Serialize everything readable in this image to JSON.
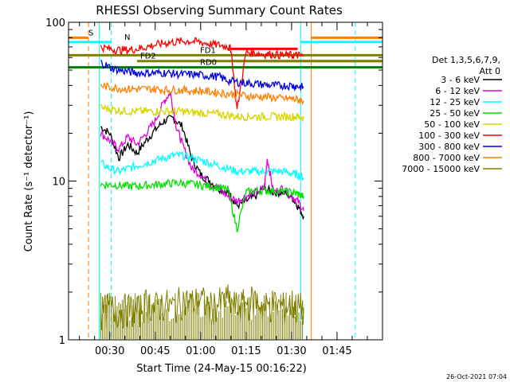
{
  "chart_data": {
    "type": "line",
    "title": "RHESSI Observing Summary Count Rates",
    "xlabel": "Start Time (24-May-15 00:16:22)",
    "ylabel": "Count Rate (s⁻¹ detector⁻¹)",
    "yscale": "log",
    "ylim": [
      1,
      100
    ],
    "xlim_minutes": [
      16.4,
      120
    ],
    "y_ticks": [
      {
        "v": 1,
        "label": "1"
      },
      {
        "v": 10,
        "label": "10"
      },
      {
        "v": 100,
        "label": "100"
      }
    ],
    "x_ticks": [
      {
        "v": 30,
        "label": "00:30"
      },
      {
        "v": 45,
        "label": "00:45"
      },
      {
        "v": 60,
        "label": "01:00"
      },
      {
        "v": 75,
        "label": "01:15"
      },
      {
        "v": 90,
        "label": "01:30"
      },
      {
        "v": 105,
        "label": "01:45"
      }
    ],
    "legend_header": [
      "Det 1,3,5,6,7,9,",
      "Att 0"
    ],
    "legend_position": "right",
    "series": [
      {
        "name": "3 - 6 keV",
        "color": "#000000",
        "x": [
          27,
          30,
          33,
          36,
          39,
          42,
          45,
          48,
          51,
          54,
          57,
          60,
          63,
          66,
          69,
          70,
          72,
          75,
          78,
          81,
          84,
          87,
          90,
          92,
          94
        ],
        "y": [
          22,
          20,
          14,
          17,
          15,
          18,
          21,
          24,
          25,
          22,
          14,
          11,
          10,
          9,
          8.5,
          8,
          7,
          7.5,
          8,
          9,
          8.5,
          8.5,
          8,
          7,
          6
        ]
      },
      {
        "name": "6 - 12 keV",
        "color": "#e100e1",
        "x": [
          27,
          30,
          33,
          36,
          39,
          42,
          45,
          48,
          50,
          52,
          54,
          57,
          60,
          63,
          66,
          69,
          72,
          75,
          78,
          81,
          82,
          84,
          87,
          90,
          92,
          94
        ],
        "y": [
          20,
          18,
          16,
          19,
          17,
          20,
          24,
          32,
          36,
          22,
          17,
          12,
          11,
          9.5,
          9,
          8,
          7.5,
          8,
          8.5,
          9,
          14,
          8.5,
          9,
          8,
          7.5,
          6.5
        ]
      },
      {
        "name": "12 - 25 keV",
        "color": "#00ffff",
        "x": [
          27,
          30,
          33,
          36,
          39,
          42,
          45,
          48,
          51,
          54,
          57,
          60,
          63,
          66,
          69,
          72,
          75,
          78,
          81,
          84,
          87,
          90,
          92,
          94
        ],
        "y": [
          13,
          12,
          11.5,
          12,
          12.5,
          13,
          13.5,
          14,
          14.5,
          14.5,
          14,
          13.5,
          13,
          12.5,
          12,
          11.5,
          11.5,
          11.5,
          11.5,
          11.5,
          11.5,
          11.2,
          11,
          10.5
        ]
      },
      {
        "name": "25 - 50 keV",
        "color": "#00e000",
        "x": [
          27,
          30,
          33,
          36,
          39,
          42,
          45,
          48,
          51,
          54,
          57,
          60,
          63,
          66,
          69,
          72,
          75,
          78,
          81,
          84,
          87,
          90,
          92,
          94
        ],
        "y": [
          9.5,
          9.5,
          9.4,
          9.3,
          9.3,
          9.4,
          9.5,
          9.6,
          9.7,
          9.7,
          9.6,
          9.4,
          9.3,
          9.1,
          8.8,
          5,
          8.5,
          8.7,
          8.7,
          8.7,
          8.6,
          8.5,
          8.3,
          8
        ]
      },
      {
        "name": "50 - 100 keV",
        "color": "#d6d600",
        "x": [
          27,
          30,
          33,
          36,
          39,
          42,
          45,
          48,
          51,
          54,
          57,
          60,
          63,
          66,
          69,
          72,
          75,
          78,
          81,
          84,
          87,
          90,
          92,
          94
        ],
        "y": [
          29,
          28.5,
          28,
          27.5,
          27.5,
          27.5,
          27.5,
          27.5,
          27.5,
          27.5,
          27,
          27,
          26.5,
          26.5,
          26,
          25.5,
          25.5,
          25.5,
          25.5,
          25.5,
          25.5,
          25.5,
          25.5,
          25
        ]
      },
      {
        "name": "100 - 300 keV",
        "color": "#ff0000",
        "x": [
          27,
          30,
          33,
          36,
          39,
          42,
          45,
          48,
          51,
          54,
          57,
          60,
          63,
          66,
          69,
          70,
          72,
          75,
          78,
          81,
          84,
          87,
          90,
          92,
          94
        ],
        "y": [
          70,
          68,
          67,
          67,
          68,
          70,
          72,
          74,
          75,
          76,
          76,
          75,
          73,
          72,
          70,
          68,
          28,
          65,
          64,
          63,
          63,
          62,
          62,
          62,
          61
        ]
      },
      {
        "name": "300 - 800 keV",
        "color": "#0000e0",
        "x": [
          27,
          30,
          33,
          36,
          39,
          42,
          45,
          48,
          51,
          54,
          57,
          60,
          63,
          66,
          69,
          72,
          75,
          78,
          81,
          84,
          87,
          90,
          92,
          94
        ],
        "y": [
          56,
          52,
          50,
          49,
          48,
          48,
          48,
          48,
          47.5,
          47,
          47,
          46.5,
          46,
          45.5,
          43,
          42,
          41.5,
          41,
          40.5,
          40,
          40,
          40,
          39.5,
          39
        ]
      },
      {
        "name": "800 - 7000 keV",
        "color": "#ff8000",
        "x": [
          27,
          30,
          33,
          36,
          39,
          42,
          45,
          48,
          51,
          54,
          57,
          60,
          63,
          66,
          69,
          72,
          75,
          78,
          81,
          84,
          87,
          90,
          92,
          94
        ],
        "y": [
          40,
          39,
          38.5,
          38,
          38,
          38,
          38,
          37.5,
          37.5,
          37.5,
          37,
          37,
          36.5,
          36,
          35.5,
          35,
          34.5,
          34,
          34,
          33.5,
          33,
          33,
          32.5,
          32
        ]
      },
      {
        "name": "7000 - 15000 keV",
        "color": "#808000",
        "x": [
          27,
          30,
          33,
          36,
          39,
          42,
          45,
          48,
          51,
          54,
          57,
          60,
          63,
          66,
          69,
          72,
          75,
          78,
          81,
          84,
          87,
          90,
          92,
          94
        ],
        "y": [
          1.5,
          1.6,
          1.5,
          1.6,
          1.5,
          1.7,
          1.6,
          1.7,
          1.6,
          1.8,
          1.7,
          1.8,
          1.6,
          1.7,
          1.8,
          1.6,
          1.7,
          1.8,
          1.6,
          1.7,
          1.6,
          1.7,
          1.6,
          1.6
        ]
      }
    ],
    "flag_bars": [
      {
        "label": "S",
        "color": "#ff8000",
        "x0": 16.4,
        "x1": 23,
        "y": 80
      },
      {
        "label": "N",
        "color": "#00ffff",
        "x0": 16.4,
        "x1": 30.5,
        "y": 75
      },
      {
        "label": "",
        "color": "#ff8000",
        "x0": 96.5,
        "x1": 120,
        "y": 80
      },
      {
        "label": "",
        "color": "#00ffff",
        "x0": 93,
        "x1": 120,
        "y": 75
      },
      {
        "label": "FD1",
        "color": "#808000",
        "x0": 16.4,
        "x1": 120,
        "y": 62
      },
      {
        "label": "FD2",
        "color": "#808000",
        "x0": 39,
        "x1": 120,
        "y": 57
      },
      {
        "label": "",
        "color": "#808000",
        "x0": 71,
        "x1": 120,
        "y": 57
      },
      {
        "label": "RD0",
        "color": "#008000",
        "x0": 16.4,
        "x1": 120,
        "y": 52
      },
      {
        "label": "",
        "color": "#ff0000",
        "x0": 70,
        "x1": 92,
        "y": 68
      }
    ],
    "vlines": [
      {
        "x": 23,
        "color": "#ff8000",
        "dashed": true
      },
      {
        "x": 30.5,
        "color": "#00ffff",
        "dashed": true
      },
      {
        "x": 26.5,
        "color": "#00ffff",
        "dashed": false
      },
      {
        "x": 93,
        "color": "#00ffff",
        "dashed": false
      },
      {
        "x": 96.5,
        "color": "#ff8000",
        "dashed": false
      },
      {
        "x": 111,
        "color": "#00ffff",
        "dashed": true
      }
    ],
    "timestamp": "26-Oct-2021 07:04"
  }
}
